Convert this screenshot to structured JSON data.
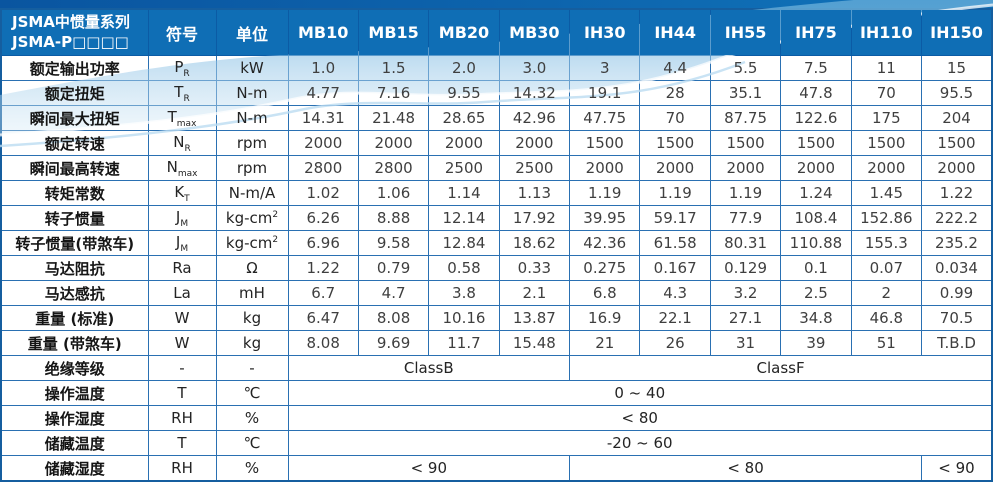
{
  "header": {
    "title_line1": "JSMA中惯量系列",
    "title_line2": "JSMA-P□□□□",
    "symbol_col": "符号",
    "unit_col": "单位",
    "models": [
      "MB10",
      "MB15",
      "MB20",
      "MB30",
      "IH30",
      "IH44",
      "IH55",
      "IH75",
      "IH110",
      "IH150"
    ]
  },
  "colors": {
    "header_bg": "#0f6eb5",
    "grid_line": "#2a70b2",
    "outer_border": "#155e9f",
    "top_bar": "#0a55a0",
    "wave_blue": "#9ecbe9",
    "value_text": "#3f3f3f"
  },
  "rows": [
    {
      "label": "额定输出功率",
      "sym": "P",
      "sym_sub": "R",
      "unit": "kW",
      "values": [
        "1.0",
        "1.5",
        "2.0",
        "3.0",
        "3",
        "4.4",
        "5.5",
        "7.5",
        "11",
        "15"
      ]
    },
    {
      "label": "额定扭矩",
      "sym": "T",
      "sym_sub": "R",
      "unit": "N-m",
      "values": [
        "4.77",
        "7.16",
        "9.55",
        "14.32",
        "19.1",
        "28",
        "35.1",
        "47.8",
        "70",
        "95.5"
      ]
    },
    {
      "label": "瞬间最大扭矩",
      "sym": "T",
      "sym_sub": "max",
      "unit": "N-m",
      "values": [
        "14.31",
        "21.48",
        "28.65",
        "42.96",
        "47.75",
        "70",
        "87.75",
        "122.6",
        "175",
        "204"
      ]
    },
    {
      "label": "额定转速",
      "sym": "N",
      "sym_sub": "R",
      "unit": "rpm",
      "values": [
        "2000",
        "2000",
        "2000",
        "2000",
        "1500",
        "1500",
        "1500",
        "1500",
        "1500",
        "1500"
      ]
    },
    {
      "label": "瞬间最高转速",
      "sym": "N",
      "sym_sub": "max",
      "unit": "rpm",
      "values": [
        "2800",
        "2800",
        "2500",
        "2500",
        "2000",
        "2000",
        "2000",
        "2000",
        "2000",
        "2000"
      ]
    },
    {
      "label": "转矩常数",
      "sym": "K",
      "sym_sub": "T",
      "unit": "N-m/A",
      "values": [
        "1.02",
        "1.06",
        "1.14",
        "1.13",
        "1.19",
        "1.19",
        "1.19",
        "1.24",
        "1.45",
        "1.22"
      ]
    },
    {
      "label": "转子惯量",
      "sym": "J",
      "sym_sub": "M",
      "unit": "kg-cm",
      "unit_sup": "2",
      "values": [
        "6.26",
        "8.88",
        "12.14",
        "17.92",
        "39.95",
        "59.17",
        "77.9",
        "108.4",
        "152.86",
        "222.2"
      ]
    },
    {
      "label": "转子惯量(带煞车)",
      "sym": "J",
      "sym_sub": "M",
      "unit": "kg-cm",
      "unit_sup": "2",
      "values": [
        "6.96",
        "9.58",
        "12.84",
        "18.62",
        "42.36",
        "61.58",
        "80.31",
        "110.88",
        "155.3",
        "235.2"
      ]
    },
    {
      "label": "马达阻抗",
      "sym": "Ra",
      "unit": "Ω",
      "values": [
        "1.22",
        "0.79",
        "0.58",
        "0.33",
        "0.275",
        "0.167",
        "0.129",
        "0.1",
        "0.07",
        "0.034"
      ]
    },
    {
      "label": "马达感抗",
      "sym": "La",
      "unit": "mH",
      "values": [
        "6.7",
        "4.7",
        "3.8",
        "2.1",
        "6.8",
        "4.3",
        "3.2",
        "2.5",
        "2",
        "0.99"
      ]
    },
    {
      "label": "重量 (标准)",
      "sym": "W",
      "unit": "kg",
      "values": [
        "6.47",
        "8.08",
        "10.16",
        "13.87",
        "16.9",
        "22.1",
        "27.1",
        "34.8",
        "46.8",
        "70.5"
      ]
    },
    {
      "label": "重量 (带煞车)",
      "sym": "W",
      "unit": "kg",
      "values": [
        "8.08",
        "9.69",
        "11.7",
        "15.48",
        "21",
        "26",
        "31",
        "39",
        "51",
        "T.B.D"
      ]
    },
    {
      "label": "绝缘等级",
      "sym": "-",
      "unit": "-",
      "spans": [
        {
          "text": "ClassB",
          "span": 4
        },
        {
          "text": "ClassF",
          "span": 6
        }
      ]
    },
    {
      "label": "操作温度",
      "sym": "T",
      "unit": "℃",
      "spans": [
        {
          "text": "0 ~ 40",
          "span": 10
        }
      ]
    },
    {
      "label": "操作湿度",
      "sym": "RH",
      "unit": "%",
      "spans": [
        {
          "text": "< 80",
          "span": 10
        }
      ]
    },
    {
      "label": "储藏温度",
      "sym": "T",
      "unit": "℃",
      "spans": [
        {
          "text": "-20 ~ 60",
          "span": 10
        }
      ]
    },
    {
      "label": "储藏湿度",
      "sym": "RH",
      "unit": "%",
      "spans": [
        {
          "text": "< 90",
          "span": 4
        },
        {
          "text": "< 80",
          "span": 5
        },
        {
          "text": "< 90",
          "span": 1
        }
      ]
    }
  ]
}
